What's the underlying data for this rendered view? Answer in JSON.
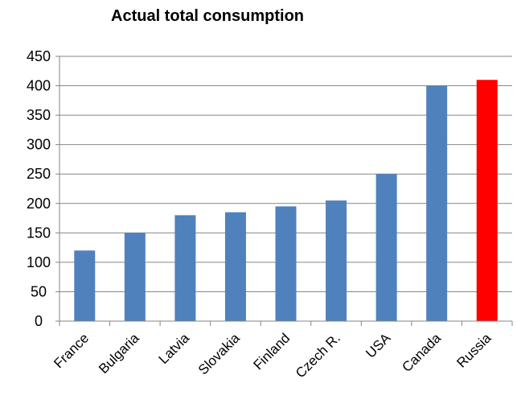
{
  "chart_data": {
    "type": "bar",
    "title": "Actual total consumption",
    "xlabel": "",
    "ylabel": "",
    "categories": [
      "France",
      "Bulgaria",
      "Latvia",
      "Slovakia",
      "Finland",
      "Czech R.",
      "USA",
      "Canada",
      "Russia"
    ],
    "values": [
      120,
      150,
      180,
      185,
      195,
      205,
      250,
      400,
      410
    ],
    "ylim": [
      0,
      450
    ],
    "yticks": [
      "0",
      "50",
      "100",
      "150",
      "200",
      "250",
      "300",
      "350",
      "400",
      "450"
    ],
    "grid": true,
    "legend": "none",
    "colors": {
      "default_bar": "#4F81BD",
      "highlight_bar": "#FF0000",
      "grid": "#868686",
      "axis": "#868686"
    },
    "highlight_category": "Russia"
  }
}
